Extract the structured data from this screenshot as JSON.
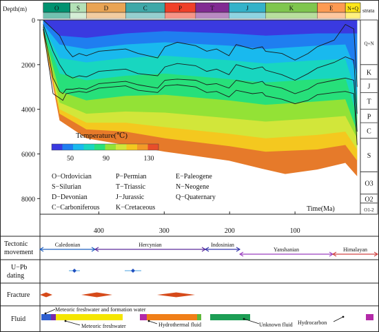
{
  "chart_data": {
    "type": "area",
    "title": "",
    "xlabel": "Time(Ma)",
    "ylabel": "Depth(m)",
    "xlim": [
      490,
      0
    ],
    "ylim": [
      0,
      8700
    ],
    "x_ticks": [
      "400",
      "300",
      "200",
      "100"
    ],
    "x_tick_values": [
      400,
      300,
      200,
      100
    ],
    "y_ticks": [
      "0",
      "2000",
      "4000",
      "6000",
      "8000"
    ],
    "y_tick_values": [
      0,
      2000,
      4000,
      6000,
      8000
    ],
    "periods": [
      {
        "code": "O",
        "start": 485,
        "end": 444,
        "color": "#009270"
      },
      {
        "code": "S",
        "start": 444,
        "end": 419,
        "color": "#b3e1b6"
      },
      {
        "code": "D",
        "start": 419,
        "end": 359,
        "color": "#e9a454"
      },
      {
        "code": "C",
        "start": 359,
        "end": 299,
        "color": "#3fa8a8"
      },
      {
        "code": "P",
        "start": 299,
        "end": 252,
        "color": "#f04028"
      },
      {
        "code": "T",
        "start": 252,
        "end": 201,
        "color": "#812b92"
      },
      {
        "code": "J",
        "start": 201,
        "end": 145,
        "color": "#34b2c9"
      },
      {
        "code": "K",
        "start": 145,
        "end": 66,
        "color": "#7fc64e"
      },
      {
        "code": "E",
        "start": 66,
        "end": 23,
        "color": "#fd9a52"
      },
      {
        "code": "N+Q",
        "start": 23,
        "end": 0,
        "color": "#ffe619"
      }
    ],
    "strata_header": "strata",
    "strata_column": [
      {
        "label": "Q+N",
        "top": 0,
        "bottom": 2000
      },
      {
        "label": "K",
        "top": 2000,
        "bottom": 2650
      },
      {
        "label": "J",
        "top": 2650,
        "bottom": 3250
      },
      {
        "label": "T",
        "top": 3250,
        "bottom": 4000
      },
      {
        "label": "P",
        "top": 4000,
        "bottom": 4600
      },
      {
        "label": "C",
        "top": 4600,
        "bottom": 5300
      },
      {
        "label": "S",
        "top": 5300,
        "bottom": 6800
      },
      {
        "label": "O3",
        "top": 6800,
        "bottom": 7800
      },
      {
        "label": "O2",
        "top": 7800,
        "bottom": 8200
      },
      {
        "label": "O1-2",
        "top": 8200,
        "bottom": 8700
      }
    ],
    "burial_curves": [
      {
        "x": [
          485,
          460,
          450,
          440,
          430,
          419,
          400,
          359,
          340,
          310,
          299,
          280,
          252,
          235,
          220,
          201,
          190,
          165,
          150,
          145,
          120,
          100,
          80,
          66,
          40,
          23,
          10,
          5
        ],
        "y": [
          0,
          700,
          1300,
          1650,
          1500,
          1600,
          1400,
          1300,
          1500,
          1700,
          1200,
          1000,
          1150,
          1400,
          1300,
          1600,
          1100,
          1300,
          1200,
          1400,
          1500,
          1800,
          1500,
          1200,
          900,
          200,
          400,
          3000
        ]
      },
      {
        "x": [
          485,
          470,
          460,
          450,
          440,
          430,
          419,
          400,
          359,
          340,
          310,
          299,
          280,
          252,
          235,
          220,
          201,
          190,
          165,
          150,
          145,
          120,
          100,
          80,
          66,
          40,
          23,
          10,
          5
        ],
        "y": [
          200,
          1400,
          2000,
          2450,
          2600,
          2500,
          2550,
          2300,
          2200,
          2400,
          2500,
          2100,
          1950,
          2050,
          2300,
          2200,
          2450,
          2000,
          2200,
          2100,
          2250,
          2450,
          2700,
          2400,
          2150,
          1900,
          1650,
          1800,
          4200
        ]
      },
      {
        "x": [
          485,
          470,
          460,
          455,
          450,
          440,
          430,
          419,
          400,
          359,
          340,
          310,
          299,
          280,
          252,
          235,
          220,
          201,
          190,
          165,
          150,
          145,
          120,
          100,
          80,
          66,
          40,
          23,
          10,
          5
        ],
        "y": [
          300,
          2600,
          3200,
          3300,
          3100,
          3100,
          3050,
          3100,
          2850,
          2750,
          2900,
          3050,
          2700,
          2650,
          2700,
          2900,
          2850,
          3050,
          2700,
          2850,
          2750,
          2900,
          3050,
          3300,
          3100,
          2850,
          2700,
          2600,
          2700,
          5000
        ]
      },
      {
        "x": [
          485,
          470,
          460,
          455,
          450,
          440,
          430,
          419,
          400,
          359,
          340,
          310,
          299,
          280,
          252,
          235,
          220,
          201,
          190,
          165,
          150,
          145,
          120,
          100,
          80,
          66,
          40,
          23,
          10,
          5
        ],
        "y": [
          400,
          3300,
          3500,
          3600,
          3300,
          3250,
          3200,
          3250,
          3050,
          2950,
          3150,
          3250,
          2950,
          2900,
          3000,
          3250,
          3200,
          3450,
          3150,
          3300,
          3250,
          3400,
          3550,
          3750,
          3600,
          3350,
          3250,
          3200,
          3300,
          5600
        ]
      }
    ],
    "temperature_zones": [
      {
        "temp": 40,
        "color": "#3a3ae0",
        "boundary": [
          {
            "x": 485,
            "y": 0
          },
          {
            "x": 460,
            "y": 700
          },
          {
            "x": 419,
            "y": 800
          },
          {
            "x": 359,
            "y": 600
          },
          {
            "x": 299,
            "y": 500
          },
          {
            "x": 201,
            "y": 600
          },
          {
            "x": 145,
            "y": 700
          },
          {
            "x": 66,
            "y": 600
          },
          {
            "x": 23,
            "y": 600
          },
          {
            "x": 5,
            "y": 600
          }
        ]
      },
      {
        "temp": 55,
        "color": "#1f7ef0",
        "boundary": [
          {
            "x": 485,
            "y": 200
          },
          {
            "x": 460,
            "y": 1100
          },
          {
            "x": 419,
            "y": 1300
          },
          {
            "x": 359,
            "y": 1100
          },
          {
            "x": 299,
            "y": 1000
          },
          {
            "x": 201,
            "y": 1150
          },
          {
            "x": 145,
            "y": 1300
          },
          {
            "x": 66,
            "y": 1150
          },
          {
            "x": 23,
            "y": 1100
          },
          {
            "x": 5,
            "y": 2400
          }
        ]
      },
      {
        "temp": 70,
        "color": "#19b9ee",
        "boundary": [
          {
            "x": 485,
            "y": 300
          },
          {
            "x": 460,
            "y": 1700
          },
          {
            "x": 419,
            "y": 1900
          },
          {
            "x": 359,
            "y": 1700
          },
          {
            "x": 299,
            "y": 1600
          },
          {
            "x": 201,
            "y": 1800
          },
          {
            "x": 145,
            "y": 1950
          },
          {
            "x": 66,
            "y": 1800
          },
          {
            "x": 23,
            "y": 1750
          },
          {
            "x": 5,
            "y": 3400
          }
        ]
      },
      {
        "temp": 85,
        "color": "#18d6c0",
        "boundary": [
          {
            "x": 485,
            "y": 400
          },
          {
            "x": 460,
            "y": 2400
          },
          {
            "x": 419,
            "y": 2700
          },
          {
            "x": 359,
            "y": 2500
          },
          {
            "x": 299,
            "y": 2400
          },
          {
            "x": 201,
            "y": 2650
          },
          {
            "x": 145,
            "y": 2800
          },
          {
            "x": 66,
            "y": 2650
          },
          {
            "x": 23,
            "y": 2600
          },
          {
            "x": 5,
            "y": 4300
          }
        ]
      },
      {
        "temp": 100,
        "color": "#27e07a",
        "boundary": [
          {
            "x": 485,
            "y": 450
          },
          {
            "x": 460,
            "y": 3200
          },
          {
            "x": 419,
            "y": 3600
          },
          {
            "x": 359,
            "y": 3400
          },
          {
            "x": 299,
            "y": 3350
          },
          {
            "x": 201,
            "y": 3600
          },
          {
            "x": 145,
            "y": 3800
          },
          {
            "x": 66,
            "y": 3650
          },
          {
            "x": 23,
            "y": 3550
          },
          {
            "x": 5,
            "y": 5000
          }
        ]
      },
      {
        "temp": 110,
        "color": "#93e236",
        "boundary": [
          {
            "x": 485,
            "y": 500
          },
          {
            "x": 460,
            "y": 3700
          },
          {
            "x": 419,
            "y": 4200
          },
          {
            "x": 359,
            "y": 4100
          },
          {
            "x": 299,
            "y": 4150
          },
          {
            "x": 201,
            "y": 4400
          },
          {
            "x": 145,
            "y": 4550
          },
          {
            "x": 66,
            "y": 4400
          },
          {
            "x": 23,
            "y": 4300
          },
          {
            "x": 5,
            "y": 5300
          }
        ]
      },
      {
        "temp": 120,
        "color": "#d2e63a",
        "boundary": [
          {
            "x": 485,
            "y": 550
          },
          {
            "x": 460,
            "y": 4000
          },
          {
            "x": 419,
            "y": 4600
          },
          {
            "x": 359,
            "y": 4600
          },
          {
            "x": 299,
            "y": 4800
          },
          {
            "x": 201,
            "y": 5100
          },
          {
            "x": 145,
            "y": 5300
          },
          {
            "x": 66,
            "y": 5150
          },
          {
            "x": 23,
            "y": 5000
          },
          {
            "x": 5,
            "y": 5800
          }
        ]
      },
      {
        "temp": 125,
        "color": "#f4c81f",
        "boundary": [
          {
            "x": 485,
            "y": 600
          },
          {
            "x": 460,
            "y": 4200
          },
          {
            "x": 419,
            "y": 4900
          },
          {
            "x": 359,
            "y": 5000
          },
          {
            "x": 299,
            "y": 5300
          },
          {
            "x": 201,
            "y": 5650
          },
          {
            "x": 145,
            "y": 5900
          },
          {
            "x": 66,
            "y": 5800
          },
          {
            "x": 23,
            "y": 5600
          },
          {
            "x": 5,
            "y": 6300
          }
        ]
      },
      {
        "temp": 135,
        "color": "#e67a2a",
        "boundary": [
          {
            "x": 485,
            "y": 650
          },
          {
            "x": 460,
            "y": 4500
          },
          {
            "x": 419,
            "y": 5300
          },
          {
            "x": 359,
            "y": 5600
          },
          {
            "x": 299,
            "y": 5900
          },
          {
            "x": 201,
            "y": 6300
          },
          {
            "x": 145,
            "y": 6700
          },
          {
            "x": 115,
            "y": 6900
          },
          {
            "x": 66,
            "y": 6700
          },
          {
            "x": 23,
            "y": 6400
          },
          {
            "x": 5,
            "y": 7000
          }
        ]
      }
    ],
    "colorbar": {
      "title": "Temperature(℃)",
      "ticks": [
        "50",
        "90",
        "130"
      ],
      "colors": [
        "#3a3ae0",
        "#1f7ef0",
        "#19b9ee",
        "#18d6c0",
        "#27e07a",
        "#93e236",
        "#d2e63a",
        "#f4c81f",
        "#f39a28",
        "#e84e2a"
      ]
    },
    "legend_abbreviations": [
      "O−Ordovician",
      "P−Permian",
      "E−Paleogene",
      "S−Silurian",
      "T−Triassic",
      "N−Neogene",
      "D−Devonian",
      "J−Jurassic",
      "Q−Quaternary",
      "C−Carboniferous",
      "K−Cretaceous"
    ],
    "tectonic": {
      "label": "Tectonic movement",
      "phases": [
        {
          "name": "Caledonian",
          "start": 490,
          "end": 410,
          "color": "#1f5fbf"
        },
        {
          "name": "Hercynian",
          "start": 410,
          "end": 250,
          "color": "#5a2a9a"
        },
        {
          "name": "Indosinian",
          "start": 250,
          "end": 200,
          "color": "#3333aa"
        },
        {
          "name": "Yanshanian",
          "start": 200,
          "end": 65,
          "color": "#9a3fbf"
        },
        {
          "name": "Himalayan",
          "start": 65,
          "end": 0,
          "color": "#d04040"
        }
      ]
    },
    "upb": {
      "label": "U−Pb dating",
      "points": [
        {
          "age": 440,
          "error": 8
        },
        {
          "age": 355,
          "error": 12
        }
      ]
    },
    "fracture": {
      "label": "Fracture",
      "events": [
        {
          "start": 490,
          "end": 472
        },
        {
          "start": 430,
          "end": 385
        },
        {
          "start": 320,
          "end": 265
        }
      ]
    },
    "fluid": {
      "label": "Fluid",
      "bars": [
        {
          "start": 488,
          "end": 474,
          "color": "#2f5fcf"
        },
        {
          "start": 474,
          "end": 467,
          "color": "#7a2aa8"
        },
        {
          "start": 467,
          "end": 370,
          "color": "#f5e600"
        },
        {
          "start": 345,
          "end": 335,
          "color": "#b32aa8"
        },
        {
          "start": 335,
          "end": 262,
          "color": "#f07f18"
        },
        {
          "start": 262,
          "end": 256,
          "color": "#5fb83a"
        },
        {
          "start": 243,
          "end": 185,
          "color": "#1d9e55"
        },
        {
          "start": 17,
          "end": 6,
          "color": "#b32aa8"
        }
      ],
      "annotations": [
        "Meteoric freshwater and formation water",
        "Meteoric freshwater",
        "Hydrothermal fluid",
        "Unknown fluid",
        "Hydrocarbon"
      ]
    }
  }
}
